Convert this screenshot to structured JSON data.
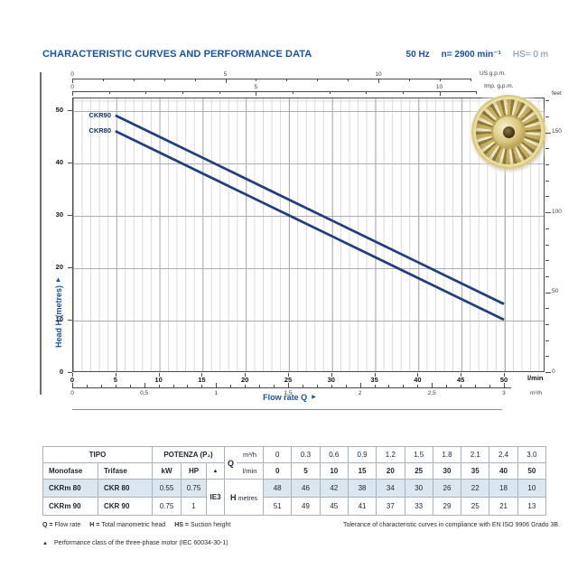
{
  "colors": {
    "accent_blue": "#1553a5",
    "curve_navy": "#1e3f7e",
    "row_highlight": "#dce6ee"
  },
  "header": {
    "title": "CHARACTERISTIC CURVES AND PERFORMANCE DATA",
    "frequency": "50 Hz",
    "speed": "n= 2900 min⁻¹",
    "suction": "HS= 0 m"
  },
  "chart": {
    "y_axis_label": "Head H (metres)",
    "x_axis_label": "Flow rate Q",
    "arrow": "▶",
    "curve_labels": [
      "CKR90",
      "CKR80"
    ],
    "axes": {
      "us_gpm": {
        "unit": "US g.p.m.",
        "labels": [
          "0",
          "5",
          "10"
        ]
      },
      "imp_gpm": {
        "unit": "Imp. g.p.m.",
        "labels": [
          "0",
          "5",
          "10"
        ]
      },
      "feet": {
        "unit": "feet",
        "labels": [
          "0",
          "50",
          "100",
          "150"
        ]
      },
      "metres": {
        "labels": [
          "0",
          "10",
          "20",
          "30",
          "40",
          "50"
        ]
      },
      "lmin": {
        "unit": "l/min",
        "labels": [
          "0",
          "5",
          "10",
          "15",
          "20",
          "25",
          "30",
          "35",
          "40",
          "45",
          "50"
        ]
      },
      "m3h": {
        "unit": "m³/h",
        "labels": [
          "0",
          "0,5",
          "1",
          "1,5",
          "2",
          "2,5",
          "3"
        ]
      }
    }
  },
  "chart_data": {
    "type": "line",
    "title": "CHARACTERISTIC CURVES AND PERFORMANCE DATA",
    "xlabel": "Flow rate Q (l/min)",
    "ylabel": "Head H (metres)",
    "x": [
      0,
      5,
      10,
      15,
      20,
      25,
      30,
      35,
      40,
      50
    ],
    "x_m3h": [
      0,
      0.3,
      0.6,
      0.9,
      1.2,
      1.5,
      1.8,
      2.1,
      2.4,
      3.0
    ],
    "series": [
      {
        "name": "CKR 90",
        "values": [
          51,
          49,
          45,
          41,
          37,
          33,
          29,
          25,
          21,
          13
        ]
      },
      {
        "name": "CKR 80",
        "values": [
          48,
          46,
          42,
          38,
          34,
          30,
          26,
          22,
          18,
          10
        ]
      }
    ],
    "plotted_range_lmin": [
      5,
      50
    ],
    "xlim": [
      0,
      50
    ],
    "ylim": [
      0,
      50
    ],
    "grid": true,
    "secondary_axes": [
      "US g.p.m.",
      "Imp. g.p.m.",
      "feet",
      "m³/h"
    ],
    "legend_position": "curve-start-labels"
  },
  "perf_table": {
    "tipo_header": "TIPO",
    "potenza_header": "POTENZA (P₂)",
    "monofase": "Monofase",
    "trifase": "Trifase",
    "kw": "kW",
    "hp": "HP",
    "triangle": "▲",
    "q_label": "Q",
    "m3h_label": "m³/h",
    "lmin_label": "l/min",
    "ie3": "IE3",
    "h_label": "H",
    "metres_label": "metres",
    "m3h_values": [
      "0",
      "0.3",
      "0.6",
      "0.9",
      "1.2",
      "1.5",
      "1.8",
      "2.1",
      "2.4",
      "3.0"
    ],
    "lmin_values": [
      "0",
      "5",
      "10",
      "15",
      "20",
      "25",
      "30",
      "35",
      "40",
      "50"
    ],
    "rows": [
      {
        "monofase": "CKRm 80",
        "trifase": "CKR 80",
        "kw": "0.55",
        "hp": "0.75",
        "heads": [
          "48",
          "46",
          "42",
          "38",
          "34",
          "30",
          "26",
          "22",
          "18",
          "10"
        ]
      },
      {
        "monofase": "CKRm 90",
        "trifase": "CKR 90",
        "kw": "0.75",
        "hp": "1",
        "heads": [
          "51",
          "49",
          "45",
          "41",
          "37",
          "33",
          "29",
          "25",
          "21",
          "13"
        ]
      }
    ]
  },
  "footnotes": {
    "defs": [
      {
        "t": "Q =",
        "d": "Flow rate"
      },
      {
        "t": "H =",
        "d": "Total manometric head"
      },
      {
        "t": "HS =",
        "d": "Suction height"
      }
    ],
    "tolerance": "Tolerance of characteristic curves in compliance with EN ISO 9906 Grado 3B.",
    "marker": "▲",
    "performance": "Performance class of the three-phase motor (IEC 60034-30-1)"
  }
}
